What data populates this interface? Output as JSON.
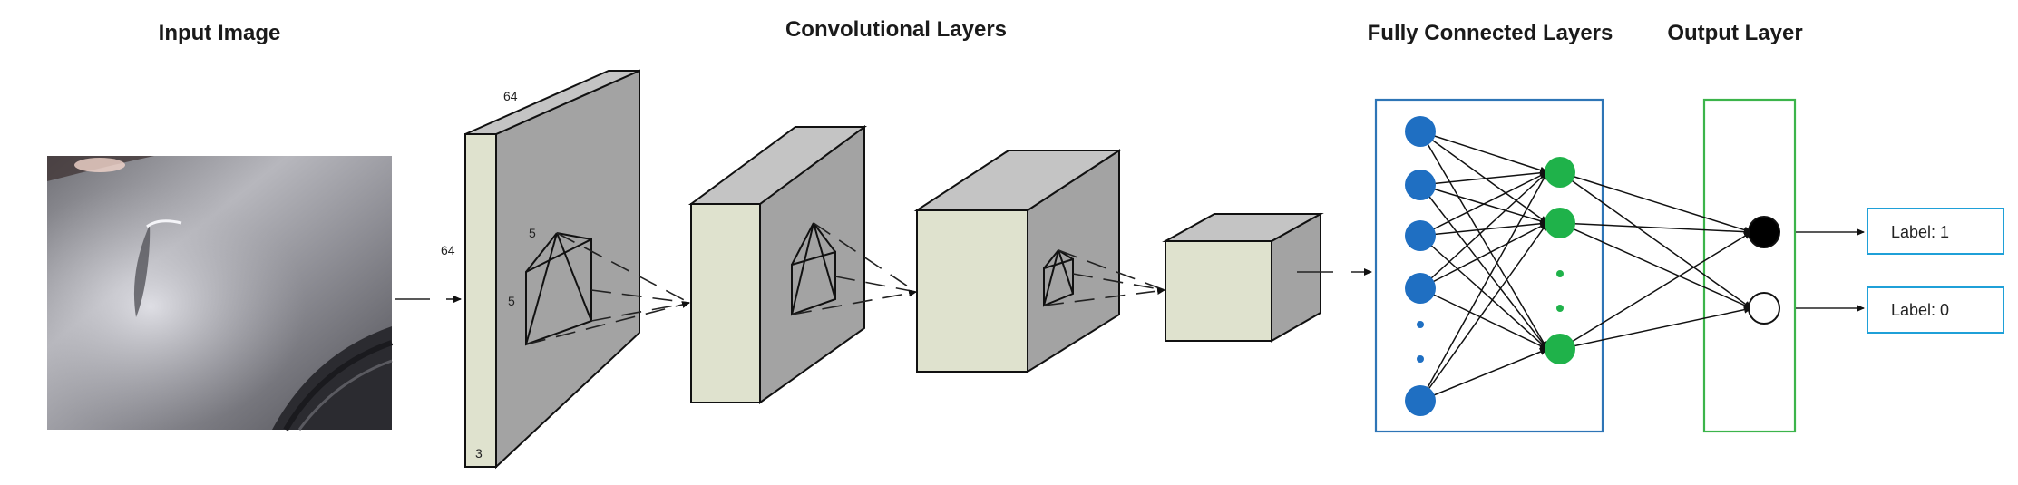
{
  "headings": {
    "input": "Input Image",
    "conv": "Convolutional Layers",
    "fc": "Fully Connected Layers",
    "output": "Output Layer"
  },
  "dims": {
    "width": "64",
    "height": "64",
    "depth": "3",
    "kernel_w": "5",
    "kernel_h": "5"
  },
  "outputs": [
    "Label: 1",
    "Label: 0"
  ],
  "colors": {
    "fc_box": "#2e75b6",
    "output_box": "#3cb44b",
    "input_node": "#1f6fc2",
    "hidden_node": "#1fb24a",
    "label_box": "#1fa0d8"
  }
}
